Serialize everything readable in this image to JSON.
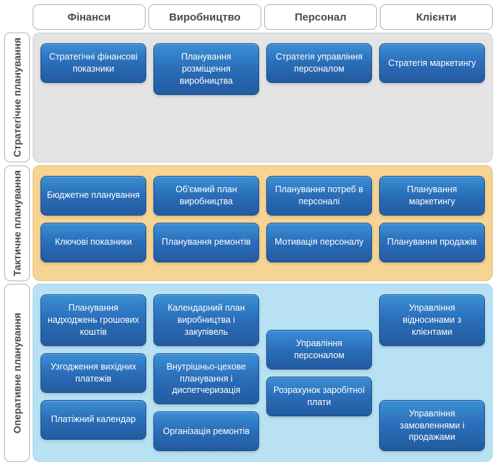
{
  "columns": [
    "Фінанси",
    "Виробництво",
    "Персонал",
    "Клієнти"
  ],
  "rows": [
    {
      "label": "Стратегічне планування",
      "bg_color": "#e4e4e4",
      "cells": [
        [
          "Стратегічні фінансові показники"
        ],
        [
          "Планування розміщення виробництва"
        ],
        [
          "Стратегія управління персоналом"
        ],
        [
          "Стратегія маркетингу"
        ]
      ]
    },
    {
      "label": "Тактичне планування",
      "bg_color": "#f6d494",
      "cells": [
        [
          "Бюджетне планування",
          "Ключові показники"
        ],
        [
          "Об'ємний план виробництва",
          "Планування ремонтів"
        ],
        [
          "Планування потреб в персоналі",
          "Мотивація персоналу"
        ],
        [
          "Планування маркетингу",
          "Планування продажів"
        ]
      ]
    },
    {
      "label": "Оперативне планування",
      "bg_color": "#b8e2f4",
      "cells": [
        [
          "Планування надходжень грошових коштів",
          "Узгодження вихідних платежів",
          "Платіжний календар"
        ],
        [
          "Календарний план виробництва і закупівель",
          "Внутрішньо-цехове планування і диспетчеризація",
          "Організація ремонтів"
        ],
        [
          "Управління персоналом",
          "Розрахунок заробітної плати"
        ],
        [
          "Управління відносинами з клієнтами",
          "Управління замовленнями і продажами"
        ]
      ]
    }
  ],
  "styling": {
    "card_gradient_top": "#3b8fd6",
    "card_gradient_mid": "#2a6db8",
    "card_gradient_bottom": "#235ba0",
    "card_border": "#1e4f8c",
    "card_text_color": "#ffffff",
    "card_font_size": 12.5,
    "header_text_color": "#4a4a4a",
    "header_border": "#b0b0b0",
    "header_font_size": 15,
    "row_header_font_size": 14,
    "border_radius": 8,
    "structure": "matrix-diagram"
  }
}
